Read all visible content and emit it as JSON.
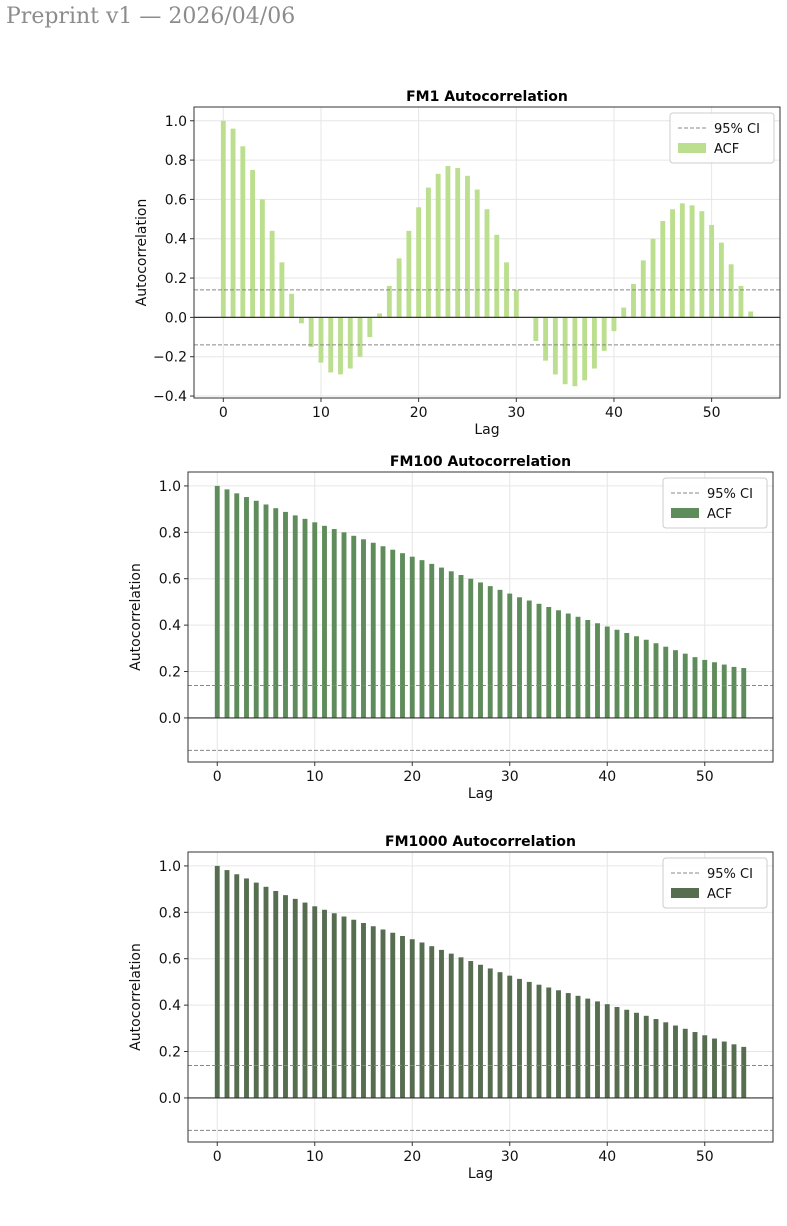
{
  "header": {
    "preprint_label": "Preprint v1 — 2026/04/06"
  },
  "colors": {
    "fm1": "#bcdf8f",
    "fm100": "#5f8c5b",
    "fm1000": "#566d50",
    "ci": "#888888"
  },
  "charts": [
    {
      "title": "FM1 Autocorrelation",
      "xlabel": "Lag",
      "ylabel": "Autocorrelation",
      "legend": {
        "ci_label": "95% CI",
        "acf_label": "ACF"
      },
      "xticks": [
        "0",
        "10",
        "20",
        "30",
        "40",
        "50"
      ],
      "yticks": [
        "−0.4",
        "−0.2",
        "0.0",
        "0.2",
        "0.4",
        "0.6",
        "0.8",
        "1.0"
      ]
    },
    {
      "title": "FM100 Autocorrelation",
      "xlabel": "Lag",
      "ylabel": "Autocorrelation",
      "legend": {
        "ci_label": "95% CI",
        "acf_label": "ACF"
      },
      "xticks": [
        "0",
        "10",
        "20",
        "30",
        "40",
        "50"
      ],
      "yticks": [
        "0.0",
        "0.2",
        "0.4",
        "0.6",
        "0.8",
        "1.0"
      ]
    },
    {
      "title": "FM1000 Autocorrelation",
      "xlabel": "Lag",
      "ylabel": "Autocorrelation",
      "legend": {
        "ci_label": "95% CI",
        "acf_label": "ACF"
      },
      "xticks": [
        "0",
        "10",
        "20",
        "30",
        "40",
        "50"
      ],
      "yticks": [
        "0.0",
        "0.2",
        "0.4",
        "0.6",
        "0.8",
        "1.0"
      ]
    }
  ],
  "chart_data": [
    {
      "type": "bar",
      "title": "FM1 Autocorrelation",
      "xlabel": "Lag",
      "ylabel": "Autocorrelation",
      "xlim": [
        -3,
        57
      ],
      "ylim": [
        -0.41,
        1.07
      ],
      "grid": true,
      "legend_position": "top-right",
      "ci_bounds": [
        0.14,
        -0.14
      ],
      "x": [
        0,
        1,
        2,
        3,
        4,
        5,
        6,
        7,
        8,
        9,
        10,
        11,
        12,
        13,
        14,
        15,
        16,
        17,
        18,
        19,
        20,
        21,
        22,
        23,
        24,
        25,
        26,
        27,
        28,
        29,
        30,
        31,
        32,
        33,
        34,
        35,
        36,
        37,
        38,
        39,
        40,
        41,
        42,
        43,
        44,
        45,
        46,
        47,
        48,
        49,
        50,
        51,
        52,
        53,
        54
      ],
      "series": [
        {
          "name": "ACF",
          "values": [
            1.0,
            0.96,
            0.87,
            0.75,
            0.6,
            0.44,
            0.28,
            0.12,
            -0.03,
            -0.15,
            -0.23,
            -0.28,
            -0.29,
            -0.26,
            -0.2,
            -0.1,
            0.02,
            0.16,
            0.3,
            0.44,
            0.56,
            0.66,
            0.73,
            0.77,
            0.76,
            0.72,
            0.65,
            0.55,
            0.42,
            0.28,
            0.14,
            0.0,
            -0.12,
            -0.22,
            -0.29,
            -0.34,
            -0.35,
            -0.32,
            -0.26,
            -0.17,
            -0.07,
            0.05,
            0.17,
            0.29,
            0.4,
            0.49,
            0.55,
            0.58,
            0.57,
            0.54,
            0.47,
            0.38,
            0.27,
            0.16,
            0.03
          ]
        }
      ]
    },
    {
      "type": "bar",
      "title": "FM100 Autocorrelation",
      "xlabel": "Lag",
      "ylabel": "Autocorrelation",
      "xlim": [
        -3,
        57
      ],
      "ylim": [
        -0.19,
        1.06
      ],
      "grid": true,
      "legend_position": "top-right",
      "ci_bounds": [
        0.14,
        -0.14
      ],
      "x": [
        0,
        1,
        2,
        3,
        4,
        5,
        6,
        7,
        8,
        9,
        10,
        11,
        12,
        13,
        14,
        15,
        16,
        17,
        18,
        19,
        20,
        21,
        22,
        23,
        24,
        25,
        26,
        27,
        28,
        29,
        30,
        31,
        32,
        33,
        34,
        35,
        36,
        37,
        38,
        39,
        40,
        41,
        42,
        43,
        44,
        45,
        46,
        47,
        48,
        49,
        50,
        51,
        52,
        53,
        54
      ],
      "series": [
        {
          "name": "ACF",
          "values": [
            1.0,
            0.985,
            0.968,
            0.952,
            0.936,
            0.92,
            0.904,
            0.888,
            0.873,
            0.858,
            0.843,
            0.828,
            0.814,
            0.8,
            0.785,
            0.77,
            0.755,
            0.74,
            0.725,
            0.71,
            0.695,
            0.68,
            0.664,
            0.648,
            0.632,
            0.616,
            0.6,
            0.584,
            0.568,
            0.552,
            0.536,
            0.52,
            0.506,
            0.492,
            0.478,
            0.464,
            0.45,
            0.436,
            0.422,
            0.408,
            0.394,
            0.38,
            0.366,
            0.352,
            0.337,
            0.322,
            0.307,
            0.292,
            0.277,
            0.262,
            0.25,
            0.24,
            0.23,
            0.22,
            0.215
          ]
        }
      ]
    },
    {
      "type": "bar",
      "title": "FM1000 Autocorrelation",
      "xlabel": "Lag",
      "ylabel": "Autocorrelation",
      "xlim": [
        -3,
        57
      ],
      "ylim": [
        -0.19,
        1.06
      ],
      "grid": true,
      "legend_position": "top-right",
      "ci_bounds": [
        0.14,
        -0.14
      ],
      "x": [
        0,
        1,
        2,
        3,
        4,
        5,
        6,
        7,
        8,
        9,
        10,
        11,
        12,
        13,
        14,
        15,
        16,
        17,
        18,
        19,
        20,
        21,
        22,
        23,
        24,
        25,
        26,
        27,
        28,
        29,
        30,
        31,
        32,
        33,
        34,
        35,
        36,
        37,
        38,
        39,
        40,
        41,
        42,
        43,
        44,
        45,
        46,
        47,
        48,
        49,
        50,
        51,
        52,
        53,
        54
      ],
      "series": [
        {
          "name": "ACF",
          "values": [
            1.0,
            0.982,
            0.964,
            0.946,
            0.928,
            0.91,
            0.892,
            0.874,
            0.858,
            0.842,
            0.826,
            0.811,
            0.796,
            0.782,
            0.768,
            0.754,
            0.74,
            0.726,
            0.712,
            0.698,
            0.684,
            0.67,
            0.654,
            0.638,
            0.622,
            0.606,
            0.59,
            0.574,
            0.558,
            0.542,
            0.527,
            0.513,
            0.5,
            0.488,
            0.476,
            0.464,
            0.452,
            0.44,
            0.428,
            0.416,
            0.404,
            0.392,
            0.38,
            0.367,
            0.354,
            0.34,
            0.326,
            0.312,
            0.298,
            0.284,
            0.27,
            0.256,
            0.243,
            0.231,
            0.22
          ]
        }
      ]
    }
  ]
}
